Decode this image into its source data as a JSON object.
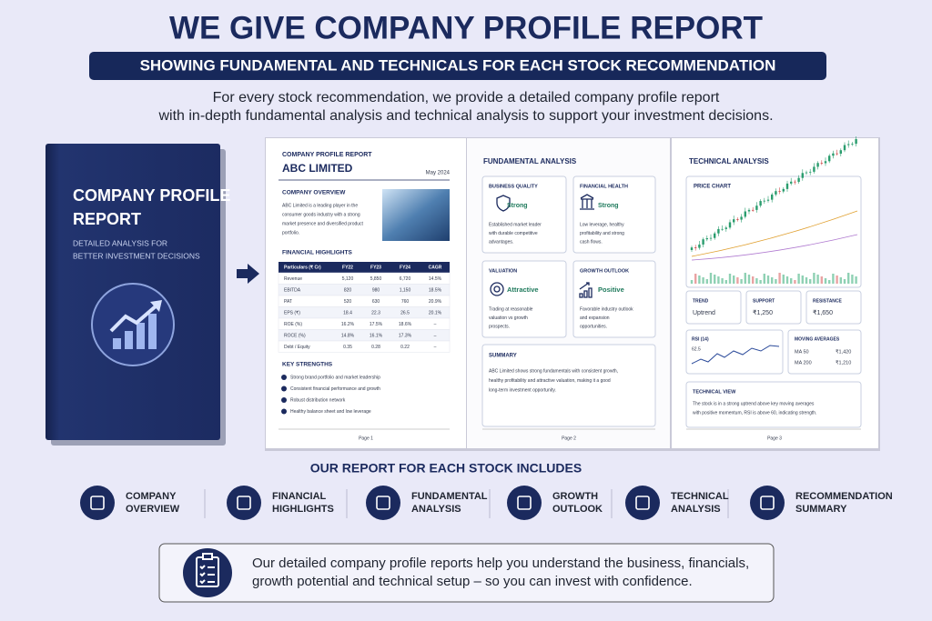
{
  "header": {
    "title": "WE GIVE COMPANY PROFILE REPORT",
    "subtitle": "SHOWING FUNDAMENTAL AND TECHNICALS FOR EACH STOCK RECOMMENDATION",
    "description": [
      "For every stock recommendation, we provide a detailed company profile report",
      "with in-depth fundamental analysis and technical analysis to support your investment decisions."
    ]
  },
  "book": {
    "title": [
      "COMPANY PROFILE",
      "REPORT"
    ],
    "subtitle": [
      "DETAILED ANALYSIS FOR",
      "BETTER INVESTMENT DECISIONS"
    ]
  },
  "page1": {
    "label": "COMPANY PROFILE REPORT",
    "company": "ABC LIMITED",
    "date": "May 2024",
    "overview_heading": "COMPANY OVERVIEW",
    "overview_text": [
      "ABC Limited is a leading player in the",
      "consumer goods industry with a strong",
      "market presence and diversified product",
      "portfolio."
    ],
    "financial_heading": "FINANCIAL HIGHLIGHTS",
    "table": {
      "header": [
        "Particulars (₹ Cr)",
        "FY22",
        "FY23",
        "FY24",
        "CAGR"
      ],
      "rows": [
        [
          "Revenue",
          "5,120",
          "5,850",
          "6,720",
          "14.5%"
        ],
        [
          "EBITDA",
          "820",
          "980",
          "1,150",
          "18.5%"
        ],
        [
          "PAT",
          "520",
          "630",
          "760",
          "20.9%"
        ],
        [
          "EPS (₹)",
          "18.4",
          "22.3",
          "26.5",
          "20.1%"
        ],
        [
          "ROE (%)",
          "16.2%",
          "17.5%",
          "18.6%",
          "–"
        ],
        [
          "ROCE (%)",
          "14.8%",
          "16.1%",
          "17.3%",
          "–"
        ],
        [
          "Debt / Equity",
          "0.35",
          "0.28",
          "0.22",
          "–"
        ]
      ]
    },
    "strengths_heading": "KEY STRENGTHS",
    "strengths": [
      "Strong brand portfolio and market leadership",
      "Consistent financial performance and growth",
      "Robust distribution network",
      "Healthy balance sheet and low leverage"
    ],
    "page": "Page 1"
  },
  "page2": {
    "heading": "FUNDAMENTAL ANALYSIS",
    "cards": [
      {
        "title": "BUSINESS QUALITY",
        "rating": "Strong",
        "text": [
          "Established market leader",
          "with durable competitive",
          "advantages."
        ]
      },
      {
        "title": "FINANCIAL HEALTH",
        "rating": "Strong",
        "text": [
          "Low leverage, healthy",
          "profitability and strong",
          "cash flows."
        ]
      },
      {
        "title": "VALUATION",
        "rating": "Attractive",
        "text": [
          "Trading at reasonable",
          "valuation vs growth",
          "prospects."
        ]
      },
      {
        "title": "GROWTH OUTLOOK",
        "rating": "Positive",
        "text": [
          "Favorable industry outlook",
          "and expansion",
          "opportunities."
        ]
      }
    ],
    "summary": {
      "title": "SUMMARY",
      "text": [
        "ABC Limited shows strong fundamentals with consistent growth,",
        "healthy profitability and attractive valuation, making it a good",
        "long-term investment opportunity."
      ]
    },
    "page": "Page 2"
  },
  "page3": {
    "heading": "TECHNICAL ANALYSIS",
    "chart_title": "PRICE CHART",
    "metrics": [
      {
        "label": "TREND",
        "value": "Uptrend"
      },
      {
        "label": "SUPPORT",
        "value": "₹1,250"
      },
      {
        "label": "RESISTANCE",
        "value": "₹1,650"
      }
    ],
    "rsi": {
      "label": "RSI (14)",
      "value": "62.5"
    },
    "moving_averages": {
      "label": "MOVING AVERAGES",
      "rows": [
        [
          "MA 50",
          "₹1,420"
        ],
        [
          "MA 200",
          "₹1,210"
        ]
      ]
    },
    "view": {
      "title": "TECHNICAL VIEW",
      "text": [
        "The stock is in a strong uptrend above key moving averages",
        "with positive momentum, RSI is above 60, indicating strength."
      ]
    },
    "page": "Page 3"
  },
  "includes": {
    "heading": "OUR REPORT FOR EACH STOCK INCLUDES",
    "items": [
      [
        "COMPANY",
        "OVERVIEW"
      ],
      [
        "FINANCIAL",
        "HIGHLIGHTS"
      ],
      [
        "FUNDAMENTAL",
        "ANALYSIS"
      ],
      [
        "GROWTH",
        "OUTLOOK"
      ],
      [
        "TECHNICAL",
        "ANALYSIS"
      ],
      [
        "RECOMMENDATION",
        "SUMMARY"
      ]
    ]
  },
  "footer": {
    "text": [
      "Our detailed company profile reports help you understand the business, financials,",
      "growth potential and technical setup – so you can invest with confidence."
    ]
  }
}
